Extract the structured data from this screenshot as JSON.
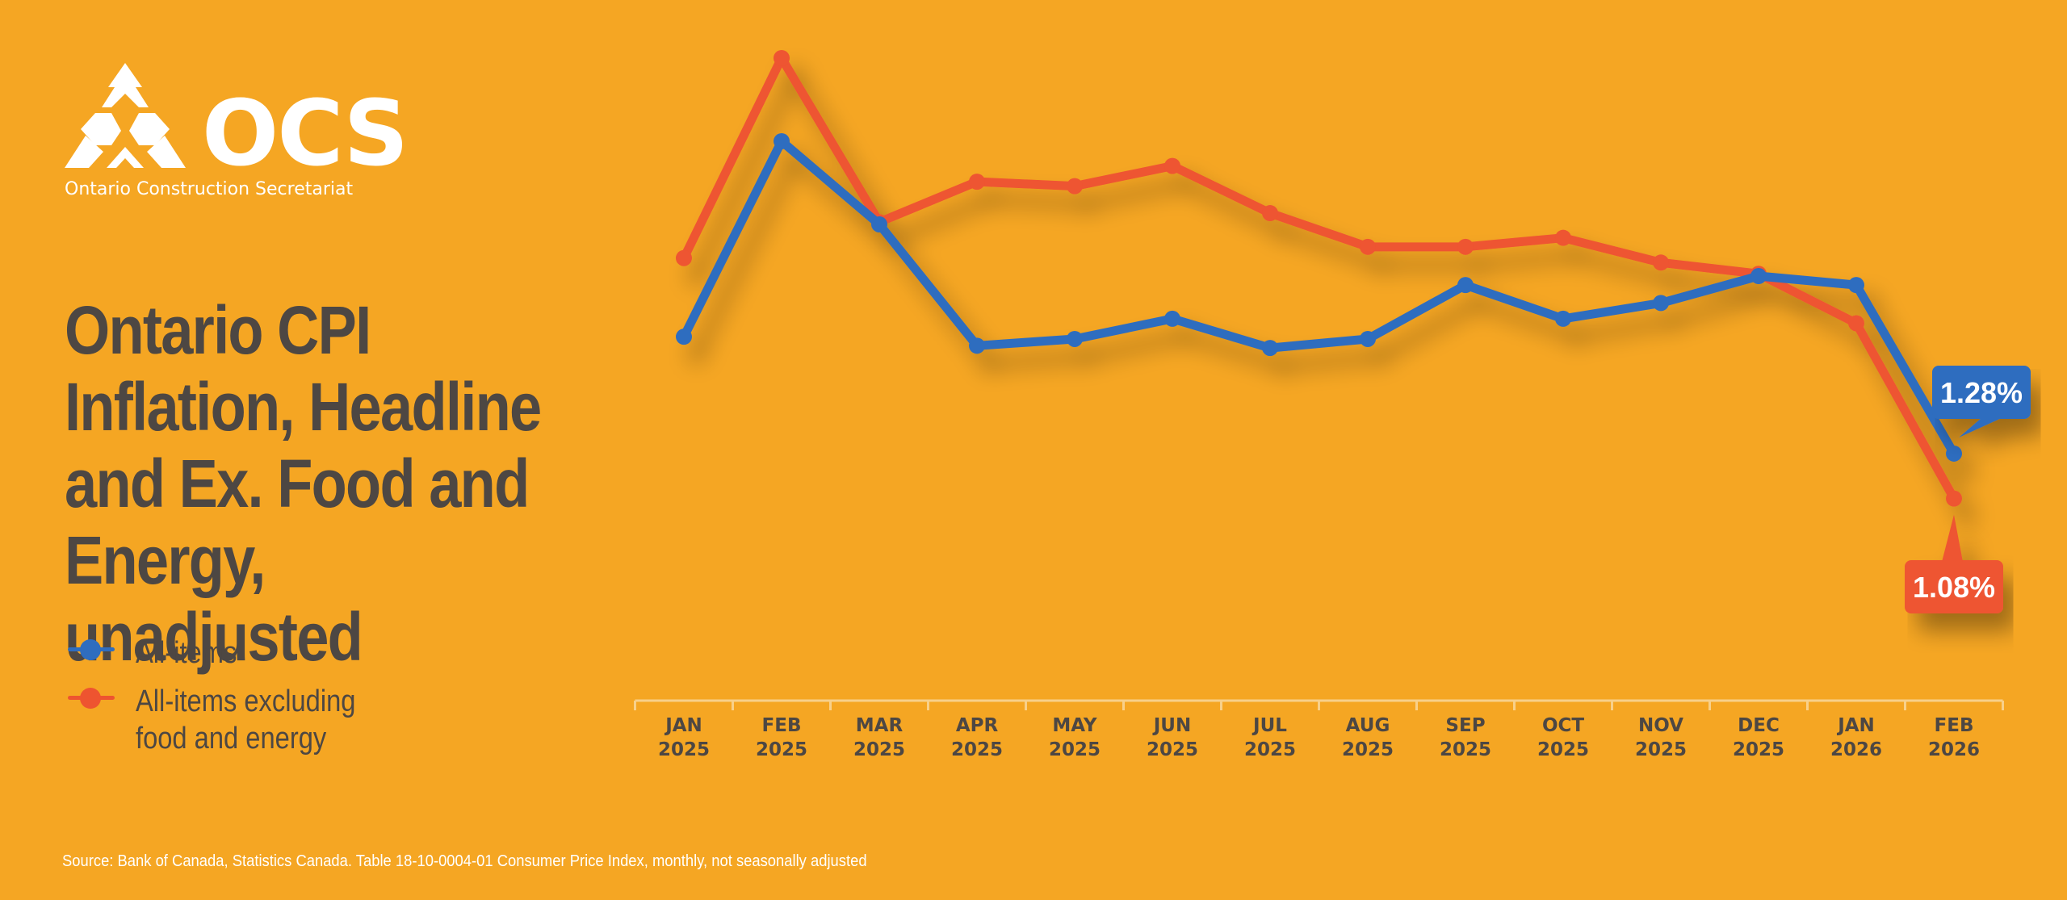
{
  "brand": {
    "name": "OCS",
    "subtitle": "Ontario Construction Secretariat"
  },
  "title": "Ontario CPI Inflation, Headline and Ex. Food and Energy, unadjusted",
  "legend": [
    {
      "label": "All-items",
      "color": "#2F6DBF"
    },
    {
      "label": "All-items excluding food and energy",
      "color": "#EE5430"
    }
  ],
  "source": "Source: Bank of Canada, Statistics Canada. Table 18-10-0004-01  Consumer Price Index, monthly, not seasonally adjusted",
  "colors": {
    "background": "#F5A623",
    "text": "#4d4743",
    "axis": "#F8D08A"
  },
  "chart_data": {
    "type": "line",
    "title": "Ontario CPI Inflation, Headline and Ex. Food and Energy, unadjusted",
    "xlabel": "",
    "ylabel": "",
    "categories": [
      [
        "JAN",
        "2025"
      ],
      [
        "FEB",
        "2025"
      ],
      [
        "MAR",
        "2025"
      ],
      [
        "APR",
        "2025"
      ],
      [
        "MAY",
        "2025"
      ],
      [
        "JUN",
        "2025"
      ],
      [
        "JUL",
        "2025"
      ],
      [
        "AUG",
        "2025"
      ],
      [
        "SEP",
        "2025"
      ],
      [
        "OCT",
        "2025"
      ],
      [
        "NOV",
        "2025"
      ],
      [
        "DEC",
        "2025"
      ],
      [
        "JAN",
        "2026"
      ],
      [
        "FEB",
        "2026"
      ]
    ],
    "series": [
      {
        "name": "All-items",
        "color": "#2F6DBF",
        "values": [
          1.8,
          2.67,
          2.3,
          1.76,
          1.79,
          1.88,
          1.75,
          1.79,
          2.03,
          1.88,
          1.95,
          2.07,
          2.03,
          1.28
        ],
        "end_label": "1.28%"
      },
      {
        "name": "All-items excluding food and energy",
        "color": "#EE5430",
        "values": [
          2.15,
          3.04,
          2.31,
          2.49,
          2.47,
          2.56,
          2.35,
          2.2,
          2.2,
          2.24,
          2.13,
          2.08,
          1.86,
          1.08
        ],
        "end_label": "1.08%"
      }
    ],
    "ylim": [
      0.6,
      3.4
    ],
    "grid": false
  }
}
